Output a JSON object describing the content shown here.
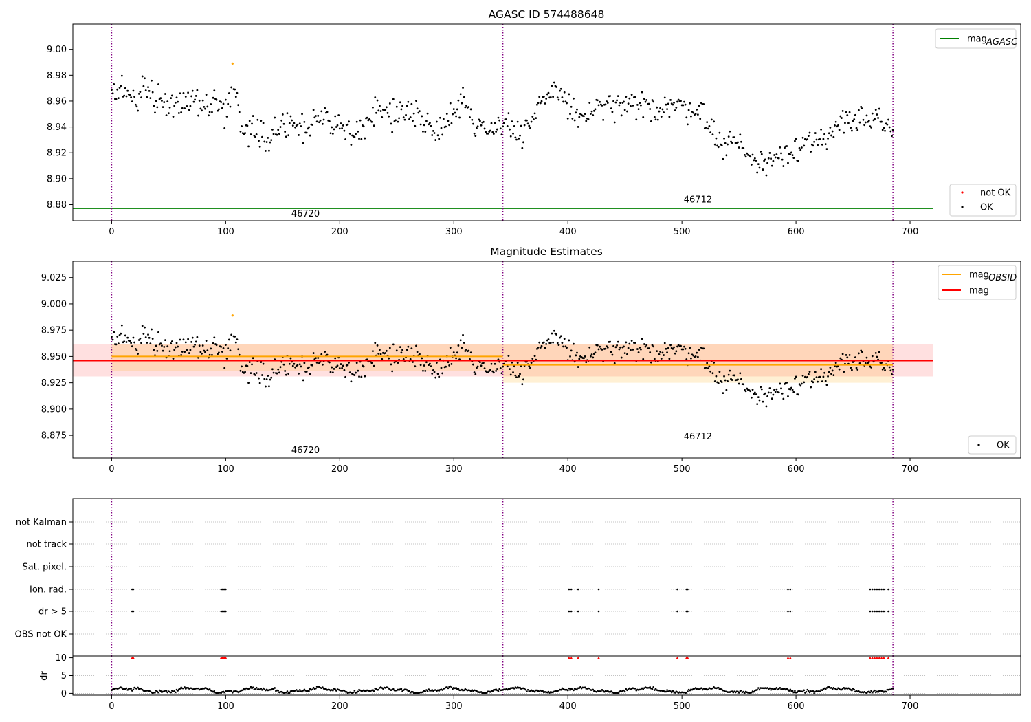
{
  "chart_data": [
    {
      "type": "scatter",
      "title": "AGASC ID 574488648",
      "xlabel": "",
      "ylabel": "",
      "xlim": [
        -34,
        797
      ],
      "ylim": [
        8.8675,
        9.0195
      ],
      "xticks": [
        0,
        100,
        200,
        300,
        400,
        500,
        600,
        700
      ],
      "yticks": [
        8.88,
        8.9,
        8.92,
        8.94,
        8.96,
        8.98,
        9.0
      ],
      "ytick_labels": [
        "8.88",
        "8.90",
        "8.92",
        "8.94",
        "8.96",
        "8.98",
        "9.00"
      ],
      "obs_boundaries": [
        0,
        343,
        685
      ],
      "obs_labels": [
        {
          "text": "46720",
          "x": 170,
          "y": 8.873
        },
        {
          "text": "46712",
          "x": 514,
          "y": 8.884
        }
      ],
      "mag_agasc": 8.877,
      "mag_agasc_xrange": [
        -34,
        720
      ],
      "not_ok_points": [
        {
          "x": 106,
          "y": 8.989
        }
      ],
      "legend_top": {
        "placement": "top-right",
        "entries": [
          {
            "label": "mag",
            "subscript": "AGASC",
            "color": "#008000"
          }
        ]
      },
      "legend_bottom": {
        "placement": "bottom-right",
        "entries": [
          {
            "label": "not OK",
            "color": "#ff0000"
          },
          {
            "label": "OK",
            "color": "#000000"
          }
        ]
      },
      "series_trace": [
        [
          0,
          8.962
        ],
        [
          10,
          8.968
        ],
        [
          20,
          8.962
        ],
        [
          30,
          8.972
        ],
        [
          40,
          8.962
        ],
        [
          50,
          8.957
        ],
        [
          60,
          8.96
        ],
        [
          70,
          8.962
        ],
        [
          80,
          8.957
        ],
        [
          90,
          8.958
        ],
        [
          100,
          8.953
        ],
        [
          105,
          8.966
        ],
        [
          110,
          8.963
        ],
        [
          113,
          8.942
        ],
        [
          120,
          8.94
        ],
        [
          130,
          8.935
        ],
        [
          140,
          8.932
        ],
        [
          150,
          8.943
        ],
        [
          160,
          8.943
        ],
        [
          170,
          8.937
        ],
        [
          180,
          8.944
        ],
        [
          190,
          8.944
        ],
        [
          200,
          8.942
        ],
        [
          210,
          8.93
        ],
        [
          220,
          8.943
        ],
        [
          230,
          8.952
        ],
        [
          240,
          8.952
        ],
        [
          250,
          8.948
        ],
        [
          260,
          8.953
        ],
        [
          270,
          8.952
        ],
        [
          280,
          8.935
        ],
        [
          290,
          8.942
        ],
        [
          300,
          8.955
        ],
        [
          310,
          8.96
        ],
        [
          320,
          8.94
        ],
        [
          330,
          8.938
        ],
        [
          343,
          8.945
        ],
        [
          350,
          8.94
        ],
        [
          360,
          8.93
        ],
        [
          370,
          8.945
        ],
        [
          380,
          8.965
        ],
        [
          390,
          8.97
        ],
        [
          400,
          8.957
        ],
        [
          410,
          8.945
        ],
        [
          420,
          8.952
        ],
        [
          430,
          8.955
        ],
        [
          440,
          8.956
        ],
        [
          450,
          8.955
        ],
        [
          460,
          8.956
        ],
        [
          470,
          8.955
        ],
        [
          480,
          8.955
        ],
        [
          490,
          8.957
        ],
        [
          500,
          8.955
        ],
        [
          510,
          8.955
        ],
        [
          520,
          8.95
        ],
        [
          530,
          8.928
        ],
        [
          540,
          8.928
        ],
        [
          550,
          8.93
        ],
        [
          560,
          8.915
        ],
        [
          570,
          8.91
        ],
        [
          580,
          8.918
        ],
        [
          590,
          8.92
        ],
        [
          600,
          8.925
        ],
        [
          610,
          8.93
        ],
        [
          620,
          8.925
        ],
        [
          630,
          8.93
        ],
        [
          640,
          8.95
        ],
        [
          650,
          8.945
        ],
        [
          660,
          8.945
        ],
        [
          670,
          8.945
        ],
        [
          680,
          8.938
        ],
        [
          685,
          8.935
        ]
      ]
    },
    {
      "type": "scatter",
      "title": "Magnitude Estimates",
      "xlabel": "",
      "ylabel": "",
      "xlim": [
        -34,
        797
      ],
      "ylim": [
        8.8535,
        9.0405
      ],
      "xticks": [
        0,
        100,
        200,
        300,
        400,
        500,
        600,
        700
      ],
      "yticks": [
        8.875,
        8.9,
        8.925,
        8.95,
        8.975,
        9.0,
        9.025
      ],
      "ytick_labels": [
        "8.875",
        "8.900",
        "8.925",
        "8.950",
        "8.975",
        "9.000",
        "9.025"
      ],
      "obs_boundaries": [
        0,
        343,
        685
      ],
      "obs_labels": [
        {
          "text": "46720",
          "x": 170,
          "y": 8.861
        },
        {
          "text": "46712",
          "x": 514,
          "y": 8.874
        }
      ],
      "mag": {
        "value": 8.946,
        "low": 8.931,
        "high": 8.962,
        "xrange": [
          -34,
          720
        ],
        "color": "#ff0000"
      },
      "mag_obsid": [
        {
          "x0": 0,
          "x1": 343,
          "value": 8.95,
          "low": 8.936,
          "high": 8.962
        },
        {
          "x0": 343,
          "x1": 685,
          "value": 8.942,
          "low": 8.925,
          "high": 8.962
        }
      ],
      "orange_points": [
        {
          "x": 106,
          "y": 8.989
        }
      ],
      "legend_top": {
        "placement": "top-right",
        "entries": [
          {
            "label": "mag",
            "subscript": "OBSID",
            "color": "#ffa500"
          },
          {
            "label": "mag",
            "subscript": "",
            "color": "#ff0000"
          }
        ]
      },
      "legend_bottom": {
        "placement": "bottom-right",
        "entries": [
          {
            "label": "OK",
            "color": "#000000"
          }
        ]
      }
    },
    {
      "type": "scatter",
      "title": "",
      "xlabel": "",
      "ylabel": "",
      "xlim": [
        -34,
        797
      ],
      "flag_rows": [
        "not Kalman",
        "not track",
        "Sat. pixel.",
        "Ion. rad.",
        "dr > 5",
        "OBS not OK"
      ],
      "grid": "horizontal dotted",
      "obs_boundaries": [
        0,
        343,
        685
      ],
      "flags": {
        "Ion. rad.": [
          18,
          19,
          96,
          97,
          98,
          99,
          100,
          401,
          403,
          409,
          427,
          496,
          504,
          505,
          593,
          595,
          665,
          667,
          669,
          671,
          673,
          675,
          677,
          681
        ],
        "dr > 5": [
          18,
          19,
          96,
          97,
          98,
          99,
          100,
          401,
          403,
          409,
          427,
          496,
          504,
          505,
          593,
          595,
          665,
          667,
          669,
          671,
          673,
          675,
          677,
          681
        ]
      }
    },
    {
      "type": "scatter",
      "title": "",
      "xlabel": "",
      "ylabel": "dr",
      "xlim": [
        -34,
        797
      ],
      "ylim": [
        -0.5,
        10.5
      ],
      "xticks": [
        0,
        100,
        200,
        300,
        400,
        500,
        600,
        700
      ],
      "yticks": [
        0,
        5,
        10
      ],
      "ytick_labels": [
        "0",
        "5",
        "10"
      ],
      "obs_boundaries": [
        0,
        343,
        685
      ],
      "clipped_points_at_10": [
        18,
        19,
        96,
        97,
        98,
        99,
        100,
        401,
        403,
        409,
        427,
        496,
        504,
        505,
        593,
        595,
        665,
        667,
        669,
        671,
        673,
        675,
        677,
        681
      ]
    }
  ]
}
